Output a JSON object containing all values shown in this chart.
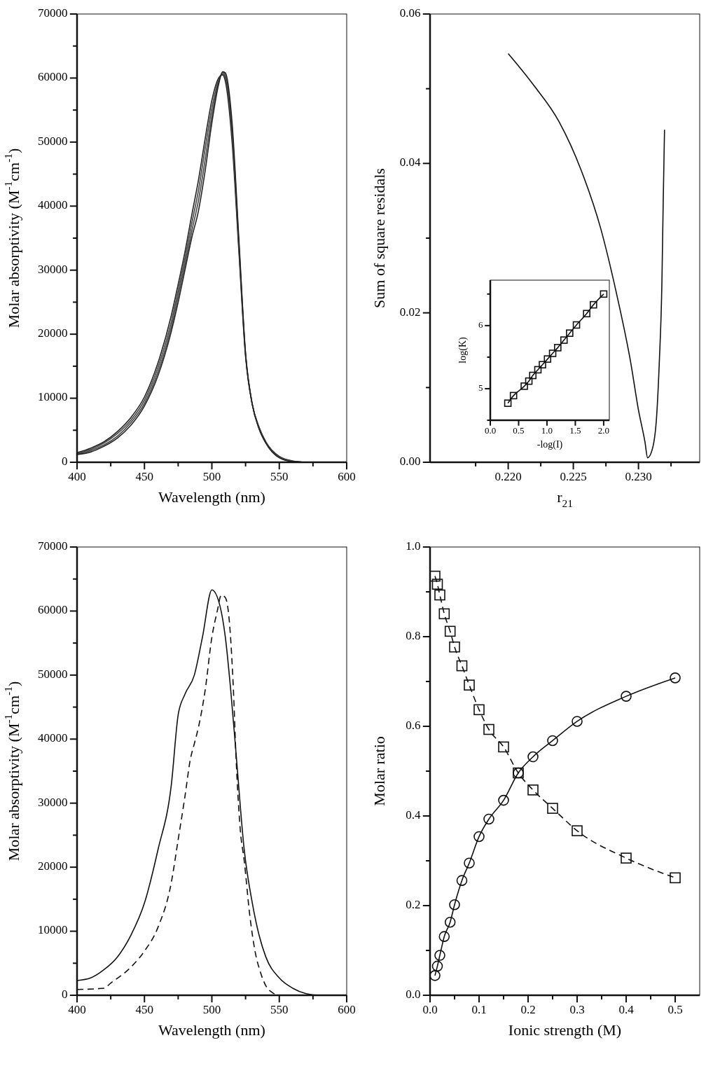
{
  "chart_data": [
    {
      "type": "line",
      "xlabel": "Wavelength (nm)",
      "ylabel": "Molar absorptivity (M$^{-1}$cm$^{-1}$)",
      "xlim": [
        400,
        600
      ],
      "ylim": [
        0,
        70000
      ],
      "xticks": [
        400,
        {
          "value": 425,
          "label": null
        },
        450,
        {
          "value": 475,
          "label": null
        },
        500,
        {
          "value": 525,
          "label": null
        },
        550,
        {
          "value": 575,
          "label": null
        },
        600
      ],
      "yticks": [
        0,
        {
          "value": 5000,
          "label": null
        },
        10000,
        {
          "value": 15000,
          "label": null
        },
        20000,
        {
          "value": 25000,
          "label": null
        },
        30000,
        {
          "value": 35000,
          "label": null
        },
        40000,
        {
          "value": 45000,
          "label": null
        },
        50000,
        {
          "value": 55000,
          "label": null
        },
        60000,
        {
          "value": 65000,
          "label": null
        },
        70000
      ],
      "x": [
        400,
        410,
        420,
        430,
        440,
        450,
        460,
        470,
        475,
        480,
        485,
        490,
        495,
        500,
        505,
        508,
        510,
        515,
        520,
        525,
        530,
        535,
        540,
        550,
        560,
        570
      ],
      "line_style": "solid",
      "marker": "none",
      "series": [
        {
          "color": "#222222",
          "values": [
            1500,
            2200,
            3200,
            4800,
            7000,
            10200,
            15500,
            23000,
            27800,
            32800,
            38500,
            44000,
            50500,
            56500,
            60000,
            60500,
            59500,
            50000,
            33000,
            16500,
            9000,
            5500,
            3200,
            900,
            200,
            0
          ]
        },
        {
          "color": "#444444",
          "values": [
            1400,
            2000,
            3000,
            4500,
            6600,
            9700,
            14800,
            22000,
            26800,
            31800,
            37200,
            42400,
            49000,
            55300,
            59700,
            60700,
            60000,
            51000,
            33700,
            16700,
            9000,
            5400,
            3100,
            830,
            170,
            0
          ]
        },
        {
          "color": "#444444",
          "values": [
            1300,
            1800,
            2700,
            4100,
            6200,
            9200,
            14100,
            21200,
            25900,
            30900,
            36000,
            40800,
            47200,
            54100,
            59300,
            60900,
            60400,
            52000,
            34300,
            16900,
            9000,
            5300,
            3050,
            770,
            130,
            0
          ]
        },
        {
          "color": "#222222",
          "values": [
            1200,
            1600,
            2500,
            3800,
            5800,
            8800,
            13500,
            20500,
            25000,
            30000,
            35000,
            39200,
            45500,
            53000,
            59000,
            61000,
            60800,
            53000,
            35000,
            17000,
            9000,
            5200,
            3000,
            700,
            100,
            0
          ]
        }
      ]
    },
    {
      "type": "line",
      "xlabel": "r$_{21}$",
      "ylabel": "Sum of square residals",
      "xlim": [
        0.214,
        0.2347
      ],
      "ylim": [
        0,
        0.06
      ],
      "xticks": [
        {
          "value": 0.2175,
          "label": null
        },
        {
          "value": 0.22,
          "label": "0.220"
        },
        {
          "value": 0.2225,
          "label": null
        },
        {
          "value": 0.225,
          "label": "0.225"
        },
        {
          "value": 0.2275,
          "label": null
        },
        {
          "value": 0.23,
          "label": "0.230"
        },
        {
          "value": 0.2325,
          "label": null
        }
      ],
      "yticks": [
        {
          "value": 0,
          "label": "0.00"
        },
        {
          "value": 0.01,
          "label": null
        },
        {
          "value": 0.02,
          "label": "0.02"
        },
        {
          "value": 0.03,
          "label": null
        },
        {
          "value": 0.04,
          "label": "0.04"
        },
        {
          "value": 0.05,
          "label": null
        },
        {
          "value": 0.06,
          "label": "0.06"
        }
      ],
      "x": [
        0.22,
        0.2219,
        0.2239,
        0.2256,
        0.2271,
        0.2283,
        0.2294,
        0.23,
        0.2305,
        0.2307,
        0.2311,
        0.2314,
        0.2316,
        0.2318,
        0.2319,
        0.232
      ],
      "line_style": "solid",
      "marker": "none",
      "series": [
        {
          "color": "#111111",
          "values": [
            0.0547,
            0.0506,
            0.0456,
            0.0391,
            0.0313,
            0.0227,
            0.0134,
            0.007,
            0.0027,
            0.0006,
            0.002,
            0.0063,
            0.0134,
            0.0241,
            0.0349,
            0.0445
          ]
        }
      ]
    },
    {
      "type": "line",
      "xlabel": "Wavelength (nm)",
      "ylabel": "Molar absorptivity (M$^{-1}$cm$^{-1}$)",
      "xlim": [
        400,
        600
      ],
      "ylim": [
        0,
        70000
      ],
      "xticks": [
        400,
        {
          "value": 425,
          "label": null
        },
        450,
        {
          "value": 475,
          "label": null
        },
        500,
        {
          "value": 525,
          "label": null
        },
        550,
        {
          "value": 575,
          "label": null
        },
        600
      ],
      "yticks": [
        0,
        {
          "value": 5000,
          "label": null
        },
        10000,
        {
          "value": 15000,
          "label": null
        },
        20000,
        {
          "value": 25000,
          "label": null
        },
        30000,
        {
          "value": 35000,
          "label": null
        },
        40000,
        {
          "value": 45000,
          "label": null
        },
        50000,
        {
          "value": 55000,
          "label": null
        },
        60000,
        {
          "value": 65000,
          "label": null
        },
        70000
      ],
      "marker": "none",
      "series": [
        {
          "color": "#111111",
          "line_style": "solid",
          "x": [
            400,
            410,
            420,
            430,
            440,
            450,
            460,
            470,
            475,
            480,
            487,
            493,
            500,
            506,
            510,
            514,
            518,
            524,
            530,
            535,
            540,
            550,
            560,
            570,
            580,
            600
          ],
          "values": [
            2300,
            2700,
            4000,
            6000,
            9400,
            14400,
            22700,
            33000,
            43800,
            47000,
            50000,
            55900,
            63300,
            60800,
            55900,
            47600,
            37600,
            22700,
            14400,
            9400,
            6000,
            2700,
            1100,
            250,
            0,
            0
          ]
        },
        {
          "color": "#111111",
          "line_style": "dashed",
          "x": [
            400,
            420,
            425,
            440,
            450,
            460,
            470,
            475,
            480,
            484,
            487,
            490,
            495,
            500,
            504,
            507,
            510,
            513,
            516,
            518,
            521,
            524,
            528,
            532,
            536,
            540,
            545,
            550,
            600
          ],
          "values": [
            900,
            1100,
            1900,
            4400,
            6900,
            10600,
            17700,
            24300,
            31000,
            36800,
            39300,
            41800,
            47600,
            55900,
            60000,
            62500,
            62100,
            58300,
            47600,
            36800,
            26000,
            21000,
            12700,
            6900,
            3600,
            1500,
            400,
            0,
            0
          ]
        }
      ]
    },
    {
      "type": "line",
      "xlabel": "Ionic strength (M)",
      "ylabel": "Molar ratio",
      "xlim": [
        0,
        0.55
      ],
      "ylim": [
        0,
        1
      ],
      "xticks": [
        {
          "value": 0,
          "label": "0.0"
        },
        {
          "value": 0.05,
          "label": null
        },
        0.1,
        {
          "value": 0.15,
          "label": null
        },
        0.2,
        {
          "value": 0.25,
          "label": null
        },
        0.3,
        {
          "value": 0.35,
          "label": null
        },
        0.4,
        {
          "value": 0.45,
          "label": null
        },
        0.5
      ],
      "yticks": [
        {
          "value": 0,
          "label": "0.0"
        },
        {
          "value": 0.1,
          "label": null
        },
        0.2,
        {
          "value": 0.3,
          "label": null
        },
        0.4,
        {
          "value": 0.5,
          "label": null
        },
        0.6,
        {
          "value": 0.7,
          "label": null
        },
        0.8,
        {
          "value": 0.9,
          "label": null
        },
        {
          "value": 1,
          "label": "1.0"
        }
      ],
      "x": [
        0.01,
        0.015,
        0.02,
        0.029,
        0.041,
        0.05,
        0.065,
        0.08,
        0.1,
        0.12,
        0.15,
        0.18,
        0.21,
        0.25,
        0.3,
        0.4,
        0.5
      ],
      "series": [
        {
          "color": "#111111",
          "marker": "circle",
          "line_style": "solid",
          "values": [
            0.044,
            0.065,
            0.089,
            0.131,
            0.163,
            0.202,
            0.256,
            0.295,
            0.354,
            0.393,
            0.435,
            0.496,
            0.532,
            0.568,
            0.611,
            0.667,
            0.708
          ]
        },
        {
          "color": "#111111",
          "marker": "square",
          "line_style": "dashed",
          "values": [
            0.935,
            0.917,
            0.893,
            0.851,
            0.812,
            0.777,
            0.735,
            0.692,
            0.637,
            0.593,
            0.554,
            0.496,
            0.458,
            0.417,
            0.367,
            0.306,
            0.262
          ]
        }
      ]
    },
    {
      "type": "line",
      "xlabel": "-log(I)",
      "ylabel": "log(K)",
      "xlim": [
        0,
        2.1
      ],
      "ylim": [
        4.5,
        6.72
      ],
      "xticks": [
        {
          "value": 0,
          "label": "0.0"
        },
        0.5,
        {
          "value": 1,
          "label": "1.0"
        },
        1.5,
        {
          "value": 2,
          "label": "2.0"
        }
      ],
      "yticks": [
        {
          "value": 4.5,
          "label": null
        },
        5,
        {
          "value": 5.5,
          "label": null
        },
        6,
        {
          "value": 6.5,
          "label": null
        }
      ],
      "x": [
        0.31,
        0.41,
        0.6,
        0.68,
        0.75,
        0.84,
        0.92,
        1.01,
        1.1,
        1.19,
        1.3,
        1.4,
        1.52,
        1.7,
        1.82,
        2.0
      ],
      "marker": "square",
      "line_style": "solid",
      "series": [
        {
          "color": "#111111",
          "values": [
            4.77,
            4.89,
            5.04,
            5.12,
            5.21,
            5.3,
            5.38,
            5.47,
            5.56,
            5.65,
            5.77,
            5.88,
            6.01,
            6.19,
            6.33,
            6.5
          ]
        }
      ]
    }
  ]
}
